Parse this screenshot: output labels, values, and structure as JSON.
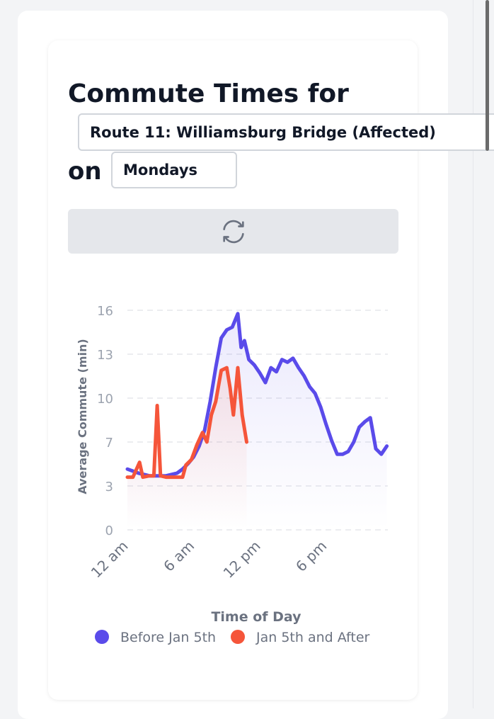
{
  "header": {
    "title": "Commute Times for",
    "route": "Route 11: Williamsburg Bridge (Affected)",
    "connector": "on",
    "day": "Mondays"
  },
  "chart_data": {
    "type": "line",
    "xlabel": "Time of Day",
    "ylabel": "Average Commute (min)",
    "xlim": [
      0,
      24
    ],
    "xticks": [
      {
        "value": 0,
        "label": "12 am"
      },
      {
        "value": 6,
        "label": "6 am"
      },
      {
        "value": 12,
        "label": "12 pm"
      },
      {
        "value": 18,
        "label": "6 pm"
      }
    ],
    "ylim": [
      0,
      16.25
    ],
    "yticks": [
      0,
      {
        "value": 3.25,
        "label": "3"
      },
      {
        "value": 6.5,
        "label": "7"
      },
      {
        "value": 9.75,
        "label": "10"
      },
      13,
      {
        "value": 16.25,
        "label": "16"
      }
    ],
    "grid": true,
    "series": [
      {
        "name": "Before Jan 5th",
        "color": "#5a4bea",
        "x": [
          0,
          0.5,
          1,
          1.5,
          2,
          2.5,
          3,
          3.5,
          4,
          4.5,
          5,
          5.5,
          6,
          6.5,
          7,
          7.5,
          8,
          8.5,
          9,
          9.5,
          10,
          10.3,
          10.6,
          11,
          11.5,
          12,
          12.5,
          13,
          13.5,
          14,
          14.5,
          15,
          15.5,
          16,
          16.5,
          17,
          17.5,
          18,
          18.5,
          19,
          19.5,
          20,
          20.5,
          21,
          21.5,
          22,
          22.5,
          23,
          23.5
        ],
        "values": [
          4.5,
          4.35,
          4.2,
          4.1,
          4.0,
          4.0,
          4.0,
          4.0,
          4.1,
          4.2,
          4.5,
          4.9,
          5.4,
          6.2,
          7.4,
          9.5,
          12.0,
          14.2,
          14.8,
          15.0,
          16.0,
          13.5,
          14.0,
          12.6,
          12.2,
          11.6,
          10.9,
          12.0,
          11.7,
          12.6,
          12.4,
          12.7,
          12.0,
          11.4,
          10.6,
          10.1,
          9.1,
          7.8,
          6.6,
          5.6,
          5.6,
          5.8,
          6.5,
          7.6,
          8.0,
          8.3,
          6.0,
          5.6,
          6.2
        ]
      },
      {
        "name": "Jan 5th and After",
        "color": "#f5553a",
        "x": [
          0,
          0.5,
          1.1,
          1.4,
          2,
          2.4,
          2.7,
          3,
          3.5,
          4,
          4.5,
          5,
          5.3,
          5.8,
          6.3,
          6.8,
          7.2,
          7.6,
          8,
          8.5,
          9,
          9.3,
          9.6,
          10,
          10.4,
          10.8
        ],
        "values": [
          3.9,
          3.9,
          5.0,
          3.9,
          4.0,
          4.0,
          9.2,
          4.0,
          3.9,
          3.9,
          3.9,
          3.9,
          4.8,
          5.2,
          6.3,
          7.2,
          6.5,
          8.5,
          9.5,
          11.8,
          12.0,
          10.5,
          8.5,
          12.0,
          8.5,
          6.5
        ]
      }
    ]
  }
}
